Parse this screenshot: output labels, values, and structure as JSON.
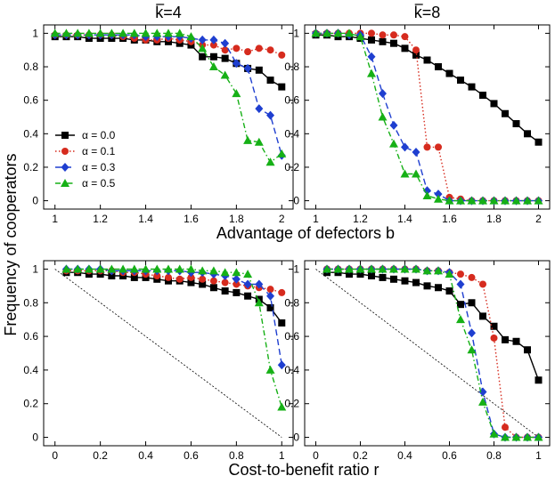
{
  "colors": {
    "alpha_0.0": "#000000",
    "alpha_0.1": "#d62b1e",
    "alpha_0.3": "#1f3fd0",
    "alpha_0.5": "#16b016"
  },
  "top_xlabel": "Advantage of defectors b",
  "bottom_xlabel": "Cost-to-benefit ratio r",
  "ylabel": "Frequency of cooperators",
  "legend": {
    "prefix": "α",
    "entries": [
      "= 0.0",
      "= 0.1",
      "= 0.3",
      "= 0.5"
    ]
  },
  "chart_data": [
    {
      "type": "line",
      "panel": "top-left",
      "title": "k=4",
      "title_bar": "k",
      "title_rest": "=4",
      "xlabel": "Advantage of defectors b",
      "ylabel": "Frequency of cooperators",
      "xlim": [
        0.95,
        2.05
      ],
      "ylim": [
        -0.05,
        1.05
      ],
      "xticks": [
        1,
        1.2,
        1.4,
        1.6,
        1.8,
        2
      ],
      "xtick_labels": [
        "1",
        "1.2",
        "1.4",
        "1.6",
        "1.8",
        "2"
      ],
      "yticks": [
        0,
        0.2,
        0.4,
        0.6,
        0.8,
        1
      ],
      "ytick_labels": [
        "0",
        "0.2",
        "0.4",
        "0.6",
        "0.8",
        "1"
      ],
      "legend_position": "left-middle",
      "series": [
        {
          "name": "α = 0.0",
          "marker": "square",
          "dash": "solid",
          "x": [
            1,
            1.05,
            1.1,
            1.15,
            1.2,
            1.25,
            1.3,
            1.35,
            1.4,
            1.45,
            1.5,
            1.55,
            1.6,
            1.65,
            1.7,
            1.75,
            1.8,
            1.85,
            1.9,
            1.95,
            2
          ],
          "y": [
            0.98,
            0.98,
            0.98,
            0.97,
            0.97,
            0.97,
            0.97,
            0.96,
            0.96,
            0.95,
            0.95,
            0.94,
            0.93,
            0.86,
            0.86,
            0.85,
            0.82,
            0.79,
            0.78,
            0.72,
            0.68
          ]
        },
        {
          "name": "α = 0.1",
          "marker": "circle",
          "dash": "dot",
          "x": [
            1,
            1.05,
            1.1,
            1.15,
            1.2,
            1.25,
            1.3,
            1.35,
            1.4,
            1.45,
            1.5,
            1.55,
            1.6,
            1.65,
            1.7,
            1.75,
            1.8,
            1.85,
            1.9,
            1.95,
            2
          ],
          "y": [
            0.99,
            0.99,
            0.99,
            0.99,
            0.99,
            0.99,
            0.98,
            0.97,
            0.96,
            0.96,
            0.97,
            0.96,
            0.95,
            0.93,
            0.93,
            0.9,
            0.91,
            0.89,
            0.91,
            0.9,
            0.87
          ]
        },
        {
          "name": "α = 0.3",
          "marker": "diamond",
          "dash": "dash",
          "x": [
            1,
            1.05,
            1.1,
            1.15,
            1.2,
            1.25,
            1.3,
            1.35,
            1.4,
            1.45,
            1.5,
            1.55,
            1.6,
            1.65,
            1.7,
            1.75,
            1.8,
            1.85,
            1.9,
            1.95,
            2
          ],
          "y": [
            0.99,
            0.99,
            0.99,
            0.99,
            0.99,
            0.99,
            0.99,
            0.99,
            0.98,
            0.98,
            0.98,
            0.98,
            0.97,
            0.96,
            0.96,
            0.94,
            0.82,
            0.79,
            0.55,
            0.51,
            0.27
          ]
        },
        {
          "name": "α = 0.5",
          "marker": "triangle",
          "dash": "dashdot",
          "x": [
            1,
            1.05,
            1.1,
            1.15,
            1.2,
            1.25,
            1.3,
            1.35,
            1.4,
            1.45,
            1.5,
            1.55,
            1.6,
            1.65,
            1.7,
            1.75,
            1.8,
            1.85,
            1.9,
            1.95,
            2
          ],
          "y": [
            1.0,
            1.0,
            1.0,
            1.0,
            1.0,
            1.0,
            1.0,
            1.0,
            1.0,
            1.0,
            1.0,
            1.0,
            0.98,
            0.91,
            0.8,
            0.75,
            0.64,
            0.36,
            0.35,
            0.23,
            0.28
          ]
        }
      ]
    },
    {
      "type": "line",
      "panel": "top-right",
      "title": "k=8",
      "title_bar": "k",
      "title_rest": "=8",
      "xlabel": "Advantage of defectors b",
      "ylabel": "",
      "xlim": [
        0.95,
        2.05
      ],
      "ylim": [
        -0.05,
        1.05
      ],
      "xticks": [
        1,
        1.2,
        1.4,
        1.6,
        1.8,
        2
      ],
      "xtick_labels": [
        "1",
        "1.2",
        "1.4",
        "1.6",
        "1.8",
        "2"
      ],
      "yticks": [
        0,
        0.2,
        0.4,
        0.6,
        0.8,
        1
      ],
      "ytick_labels": [
        "0",
        "0.2",
        "0.4",
        "0.6",
        "0.8",
        "1"
      ],
      "series": [
        {
          "name": "α = 0.0",
          "marker": "square",
          "dash": "solid",
          "x": [
            1,
            1.05,
            1.1,
            1.15,
            1.2,
            1.25,
            1.3,
            1.35,
            1.4,
            1.45,
            1.5,
            1.55,
            1.6,
            1.65,
            1.7,
            1.75,
            1.8,
            1.85,
            1.9,
            1.95,
            2
          ],
          "y": [
            0.99,
            0.99,
            0.98,
            0.98,
            0.97,
            0.96,
            0.95,
            0.94,
            0.91,
            0.87,
            0.84,
            0.8,
            0.76,
            0.72,
            0.68,
            0.63,
            0.58,
            0.52,
            0.46,
            0.4,
            0.35
          ]
        },
        {
          "name": "α = 0.1",
          "marker": "circle",
          "dash": "dot",
          "x": [
            1,
            1.05,
            1.1,
            1.15,
            1.2,
            1.25,
            1.3,
            1.35,
            1.4,
            1.45,
            1.5,
            1.55,
            1.6,
            1.65,
            1.7,
            1.75,
            1.8,
            1.85,
            1.9,
            1.95,
            2
          ],
          "y": [
            1.0,
            1.0,
            1.0,
            1.0,
            1.0,
            1.0,
            0.99,
            0.99,
            0.98,
            0.9,
            0.32,
            0.32,
            0.02,
            0.01,
            0.0,
            0.0,
            0.0,
            0.0,
            0.0,
            0.0,
            0.0
          ]
        },
        {
          "name": "α = 0.3",
          "marker": "diamond",
          "dash": "dash",
          "x": [
            1,
            1.05,
            1.1,
            1.15,
            1.2,
            1.25,
            1.3,
            1.35,
            1.4,
            1.45,
            1.5,
            1.55,
            1.6,
            1.65,
            1.7,
            1.75,
            1.8,
            1.85,
            1.9,
            1.95,
            2
          ],
          "y": [
            1.0,
            1.0,
            1.0,
            0.99,
            0.99,
            0.86,
            0.64,
            0.45,
            0.32,
            0.29,
            0.06,
            0.04,
            0.0,
            0.0,
            0.0,
            0.0,
            0.0,
            0.0,
            0.0,
            0.0,
            0.0
          ]
        },
        {
          "name": "α = 0.5",
          "marker": "triangle",
          "dash": "dashdot",
          "x": [
            1,
            1.05,
            1.1,
            1.15,
            1.2,
            1.25,
            1.3,
            1.35,
            1.4,
            1.45,
            1.5,
            1.55,
            1.6,
            1.65,
            1.7,
            1.75,
            1.8,
            1.85,
            1.9,
            1.95,
            2
          ],
          "y": [
            1.0,
            1.0,
            1.0,
            1.0,
            0.98,
            0.76,
            0.5,
            0.34,
            0.16,
            0.16,
            0.03,
            0.01,
            0.0,
            0.0,
            0.0,
            0.0,
            0.0,
            0.0,
            0.0,
            0.0,
            0.0
          ]
        }
      ]
    },
    {
      "type": "line",
      "panel": "bottom-left",
      "title": "",
      "xlabel": "Cost-to-benefit ratio r",
      "ylabel": "Frequency of cooperators",
      "xlim": [
        -0.05,
        1.05
      ],
      "ylim": [
        -0.05,
        1.05
      ],
      "xticks": [
        0,
        0.2,
        0.4,
        0.6,
        0.8,
        1
      ],
      "xtick_labels": [
        "0",
        "0.2",
        "0.4",
        "0.6",
        "0.8",
        "1"
      ],
      "yticks": [
        0,
        0.2,
        0.4,
        0.6,
        0.8,
        1
      ],
      "ytick_labels": [
        "0",
        "0.2",
        "0.4",
        "0.6",
        "0.8",
        "1"
      ],
      "reference_line": {
        "x": [
          0,
          1
        ],
        "y": [
          1,
          0
        ],
        "style": "dotted"
      },
      "series": [
        {
          "name": "α = 0.0",
          "marker": "square",
          "dash": "solid",
          "x": [
            0.05,
            0.1,
            0.15,
            0.2,
            0.25,
            0.3,
            0.35,
            0.4,
            0.45,
            0.5,
            0.55,
            0.6,
            0.65,
            0.7,
            0.75,
            0.8,
            0.85,
            0.9,
            0.95,
            1
          ],
          "y": [
            0.98,
            0.98,
            0.97,
            0.97,
            0.96,
            0.96,
            0.95,
            0.95,
            0.94,
            0.93,
            0.93,
            0.92,
            0.91,
            0.89,
            0.87,
            0.86,
            0.84,
            0.82,
            0.77,
            0.68
          ]
        },
        {
          "name": "α = 0.1",
          "marker": "circle",
          "dash": "dot",
          "x": [
            0.05,
            0.1,
            0.15,
            0.2,
            0.25,
            0.3,
            0.35,
            0.4,
            0.45,
            0.5,
            0.55,
            0.6,
            0.65,
            0.7,
            0.75,
            0.8,
            0.85,
            0.9,
            0.95,
            1
          ],
          "y": [
            0.99,
            0.99,
            0.99,
            0.99,
            0.99,
            0.98,
            0.98,
            0.97,
            0.96,
            0.95,
            0.94,
            0.95,
            0.94,
            0.93,
            0.92,
            0.91,
            0.9,
            0.89,
            0.88,
            0.86
          ]
        },
        {
          "name": "α = 0.3",
          "marker": "diamond",
          "dash": "dash",
          "x": [
            0.05,
            0.1,
            0.15,
            0.2,
            0.25,
            0.3,
            0.35,
            0.4,
            0.45,
            0.5,
            0.55,
            0.6,
            0.65,
            0.7,
            0.75,
            0.8,
            0.85,
            0.9,
            0.95,
            1
          ],
          "y": [
            1.0,
            1.0,
            1.0,
            1.0,
            0.99,
            0.99,
            0.99,
            0.99,
            0.99,
            0.99,
            0.99,
            0.98,
            0.98,
            0.97,
            0.96,
            0.94,
            0.91,
            0.91,
            0.84,
            0.43
          ]
        },
        {
          "name": "α = 0.5",
          "marker": "triangle",
          "dash": "dashdot",
          "x": [
            0.05,
            0.1,
            0.15,
            0.2,
            0.25,
            0.3,
            0.35,
            0.4,
            0.45,
            0.5,
            0.55,
            0.6,
            0.65,
            0.7,
            0.75,
            0.8,
            0.85,
            0.9,
            0.95,
            1
          ],
          "y": [
            1.0,
            1.0,
            1.0,
            1.0,
            1.0,
            1.0,
            1.0,
            1.0,
            1.0,
            1.0,
            1.0,
            1.0,
            0.99,
            0.99,
            0.98,
            0.98,
            0.97,
            0.8,
            0.4,
            0.18
          ]
        }
      ]
    },
    {
      "type": "line",
      "panel": "bottom-right",
      "title": "",
      "xlabel": "Cost-to-benefit ratio r",
      "ylabel": "",
      "xlim": [
        -0.05,
        1.05
      ],
      "ylim": [
        -0.05,
        1.05
      ],
      "xticks": [
        0,
        0.2,
        0.4,
        0.6,
        0.8,
        1
      ],
      "xtick_labels": [
        "0",
        "0.2",
        "0.4",
        "0.6",
        "0.8",
        "1"
      ],
      "yticks": [
        0,
        0.2,
        0.4,
        0.6,
        0.8,
        1
      ],
      "ytick_labels": [
        "0",
        "0.2",
        "0.4",
        "0.6",
        "0.8",
        "1"
      ],
      "reference_line": {
        "x": [
          0,
          1
        ],
        "y": [
          1,
          0
        ],
        "style": "dotted"
      },
      "series": [
        {
          "name": "α = 0.0",
          "marker": "square",
          "dash": "solid",
          "x": [
            0.05,
            0.1,
            0.15,
            0.2,
            0.25,
            0.3,
            0.35,
            0.4,
            0.45,
            0.5,
            0.55,
            0.6,
            0.65,
            0.7,
            0.75,
            0.8,
            0.85,
            0.9,
            0.95,
            1
          ],
          "y": [
            0.98,
            0.98,
            0.97,
            0.97,
            0.96,
            0.95,
            0.94,
            0.93,
            0.92,
            0.9,
            0.89,
            0.87,
            0.79,
            0.8,
            0.72,
            0.66,
            0.58,
            0.57,
            0.52,
            0.34
          ]
        },
        {
          "name": "α = 0.1",
          "marker": "circle",
          "dash": "dot",
          "x": [
            0.05,
            0.1,
            0.15,
            0.2,
            0.25,
            0.3,
            0.35,
            0.4,
            0.45,
            0.5,
            0.55,
            0.6,
            0.65,
            0.7,
            0.75,
            0.8,
            0.85,
            0.9,
            0.95,
            1
          ],
          "y": [
            1.0,
            1.0,
            1.0,
            1.0,
            1.0,
            1.0,
            1.0,
            1.0,
            1.0,
            0.99,
            0.99,
            0.98,
            0.97,
            0.95,
            0.91,
            0.59,
            0.06,
            0.0,
            0.0,
            0.0
          ]
        },
        {
          "name": "α = 0.3",
          "marker": "diamond",
          "dash": "dash",
          "x": [
            0.05,
            0.1,
            0.15,
            0.2,
            0.25,
            0.3,
            0.35,
            0.4,
            0.45,
            0.5,
            0.55,
            0.6,
            0.65,
            0.7,
            0.75,
            0.8,
            0.85,
            0.9,
            0.95,
            1
          ],
          "y": [
            1.0,
            1.0,
            1.0,
            1.0,
            1.0,
            1.0,
            1.0,
            1.0,
            1.0,
            0.99,
            0.99,
            0.98,
            0.91,
            0.62,
            0.27,
            0.02,
            0.0,
            0.0,
            0.0,
            0.0
          ]
        },
        {
          "name": "α = 0.5",
          "marker": "triangle",
          "dash": "dashdot",
          "x": [
            0.05,
            0.1,
            0.15,
            0.2,
            0.25,
            0.3,
            0.35,
            0.4,
            0.45,
            0.5,
            0.55,
            0.6,
            0.65,
            0.7,
            0.75,
            0.8,
            0.85,
            0.9,
            0.95,
            1
          ],
          "y": [
            1.0,
            1.0,
            1.0,
            1.0,
            1.0,
            1.0,
            1.0,
            1.0,
            1.0,
            0.99,
            0.99,
            0.97,
            0.7,
            0.52,
            0.21,
            0.02,
            0.0,
            0.0,
            0.0,
            0.0
          ]
        }
      ]
    }
  ]
}
